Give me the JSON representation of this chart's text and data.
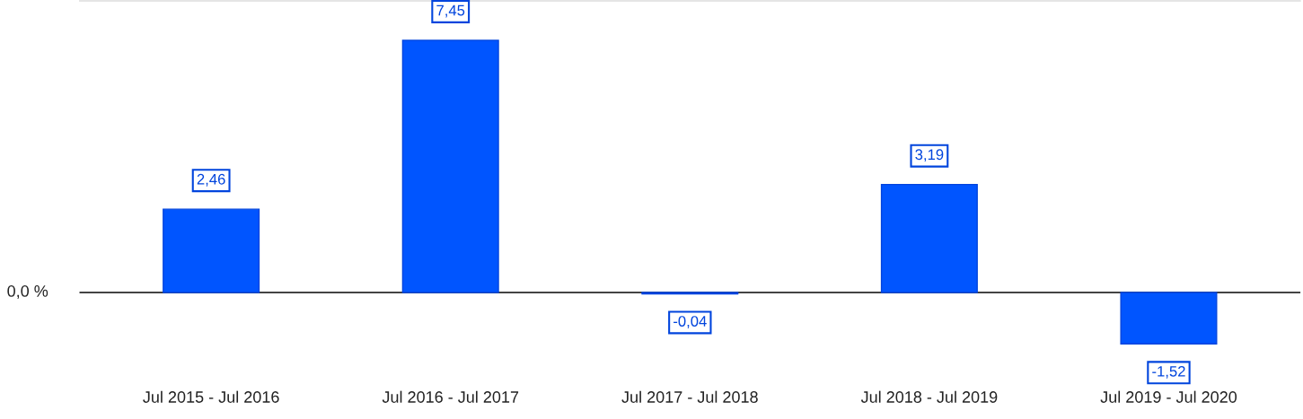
{
  "chart_data": {
    "type": "bar",
    "categories": [
      "Jul 2015 - Jul 2016",
      "Jul 2016 - Jul 2017",
      "Jul 2017 - Jul 2018",
      "Jul 2018 - Jul 2019",
      "Jul 2019 - Jul 2020"
    ],
    "values": [
      2.46,
      7.45,
      -0.04,
      3.19,
      -1.52
    ],
    "value_labels": [
      "2,46",
      "7,45",
      "-0,04",
      "3,19",
      "-1,52"
    ],
    "color": "#0055ff",
    "ref_lines": [
      {
        "axis": "y",
        "value": 0,
        "label": "0,0 %",
        "color": "#444444"
      }
    ],
    "legend": false
  }
}
